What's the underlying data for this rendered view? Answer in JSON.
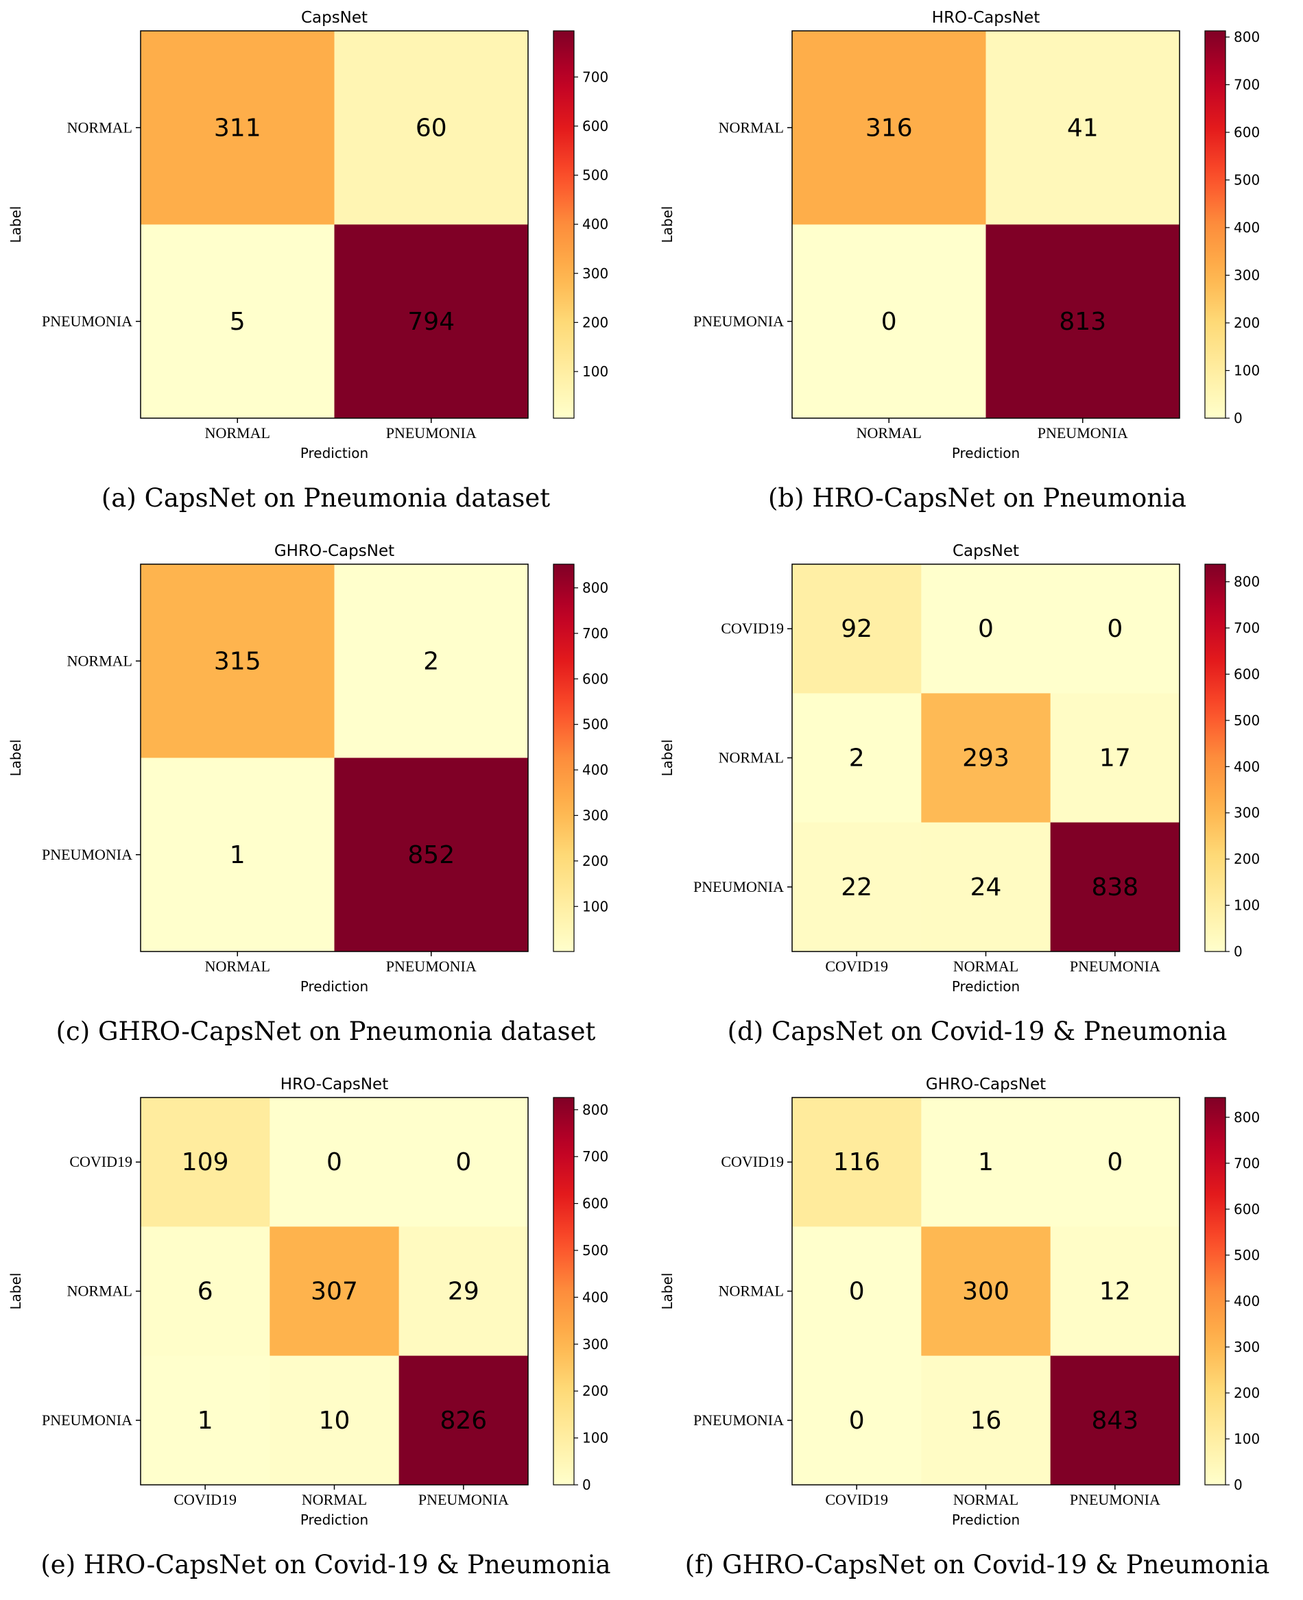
{
  "colormap": [
    "#ffffcc",
    "#ffeda0",
    "#fed976",
    "#feb24c",
    "#fd8d3c",
    "#fc4e2a",
    "#e31a1c",
    "#bd0026",
    "#800026"
  ],
  "chart_data": [
    {
      "type": "heatmap",
      "title": "CapsNet",
      "caption": "(a) CapsNet on Pneumonia dataset",
      "xlabel": "Prediction",
      "ylabel": "Label",
      "row_labels": [
        "NORMAL",
        "PNEUMONIA"
      ],
      "col_labels": [
        "NORMAL",
        "PNEUMONIA"
      ],
      "matrix": [
        [
          311,
          60
        ],
        [
          5,
          794
        ]
      ],
      "vmin": 5,
      "vmax": 794,
      "colorbar_ticks": [
        100,
        200,
        300,
        400,
        500,
        600,
        700
      ]
    },
    {
      "type": "heatmap",
      "title": "HRO-CapsNet",
      "caption": "(b) HRO-CapsNet on Pneumonia",
      "xlabel": "Prediction",
      "ylabel": "Label",
      "row_labels": [
        "NORMAL",
        "PNEUMONIA"
      ],
      "col_labels": [
        "NORMAL",
        "PNEUMONIA"
      ],
      "matrix": [
        [
          316,
          41
        ],
        [
          0,
          813
        ]
      ],
      "vmin": 0,
      "vmax": 813,
      "colorbar_ticks": [
        0,
        100,
        200,
        300,
        400,
        500,
        600,
        700,
        800
      ]
    },
    {
      "type": "heatmap",
      "title": "GHRO-CapsNet",
      "caption": "(c) GHRO-CapsNet on Pneumonia dataset",
      "xlabel": "Prediction",
      "ylabel": "Label",
      "row_labels": [
        "NORMAL",
        "PNEUMONIA"
      ],
      "col_labels": [
        "NORMAL",
        "PNEUMONIA"
      ],
      "matrix": [
        [
          315,
          2
        ],
        [
          1,
          852
        ]
      ],
      "vmin": 1,
      "vmax": 852,
      "colorbar_ticks": [
        100,
        200,
        300,
        400,
        500,
        600,
        700,
        800
      ]
    },
    {
      "type": "heatmap",
      "title": "CapsNet",
      "caption": "(d) CapsNet on Covid-19 & Pneumonia",
      "xlabel": "Prediction",
      "ylabel": "Label",
      "row_labels": [
        "COVID19",
        "NORMAL",
        "PNEUMONIA"
      ],
      "col_labels": [
        "COVID19",
        "NORMAL",
        "PNEUMONIA"
      ],
      "matrix": [
        [
          92,
          0,
          0
        ],
        [
          2,
          293,
          17
        ],
        [
          22,
          24,
          838
        ]
      ],
      "vmin": 0,
      "vmax": 838,
      "colorbar_ticks": [
        0,
        100,
        200,
        300,
        400,
        500,
        600,
        700,
        800
      ]
    },
    {
      "type": "heatmap",
      "title": "HRO-CapsNet",
      "caption": "(e) HRO-CapsNet on Covid-19 & Pneumonia",
      "xlabel": "Prediction",
      "ylabel": "Label",
      "row_labels": [
        "COVID19",
        "NORMAL",
        "PNEUMONIA"
      ],
      "col_labels": [
        "COVID19",
        "NORMAL",
        "PNEUMONIA"
      ],
      "matrix": [
        [
          109,
          0,
          0
        ],
        [
          6,
          307,
          29
        ],
        [
          1,
          10,
          826
        ]
      ],
      "vmin": 0,
      "vmax": 826,
      "colorbar_ticks": [
        0,
        100,
        200,
        300,
        400,
        500,
        600,
        700,
        800
      ]
    },
    {
      "type": "heatmap",
      "title": "GHRO-CapsNet",
      "caption": "(f) GHRO-CapsNet on Covid-19 & Pneumonia",
      "xlabel": "Prediction",
      "ylabel": "Label",
      "row_labels": [
        "COVID19",
        "NORMAL",
        "PNEUMONIA"
      ],
      "col_labels": [
        "COVID19",
        "NORMAL",
        "PNEUMONIA"
      ],
      "matrix": [
        [
          116,
          1,
          0
        ],
        [
          0,
          300,
          12
        ],
        [
          0,
          16,
          843
        ]
      ],
      "vmin": 0,
      "vmax": 843,
      "colorbar_ticks": [
        0,
        100,
        200,
        300,
        400,
        500,
        600,
        700,
        800
      ]
    }
  ]
}
